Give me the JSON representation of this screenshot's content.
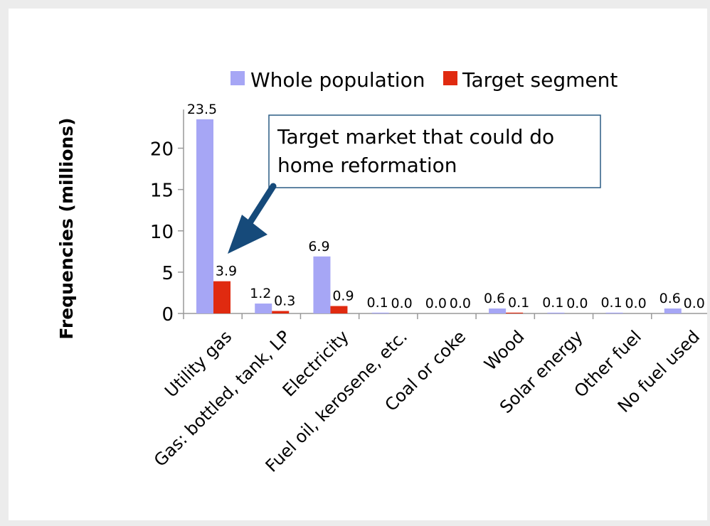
{
  "chart_data": {
    "type": "bar",
    "ylabel": "Frequencies (millions)",
    "categories": [
      "Utility gas",
      "Gas: bottled, tank, LP",
      "Electricity",
      "Fuel oil, kerosene, etc.",
      "Coal or coke",
      "Wood",
      "Solar energy",
      "Other fuel",
      "No fuel used"
    ],
    "series": [
      {
        "name": "Whole population",
        "color": "#a6a6f5",
        "values": [
          23.5,
          1.2,
          6.9,
          0.1,
          0.0,
          0.6,
          0.1,
          0.1,
          0.6
        ],
        "labels": [
          "23.5",
          "1.2",
          "6.9",
          "0.1",
          "0.0",
          "0.6",
          "0.1",
          "0.1",
          "0.6"
        ]
      },
      {
        "name": "Target segment",
        "color": "#e02a10",
        "values": [
          3.9,
          0.3,
          0.9,
          0.0,
          0.0,
          0.1,
          0.0,
          0.0,
          0.0
        ],
        "labels": [
          "3.9",
          "0.3",
          "0.9",
          "0.0",
          "0.0",
          "0.1",
          "0.0",
          "0.0",
          "0.0"
        ]
      }
    ],
    "yticks": [
      0,
      5,
      10,
      15,
      20
    ],
    "ylim": [
      0,
      24
    ],
    "legend": "top",
    "grid": false,
    "annotation": {
      "lines": [
        "Target market that could do",
        "home reformation"
      ],
      "points_to": "Utility gas - Target segment"
    }
  }
}
